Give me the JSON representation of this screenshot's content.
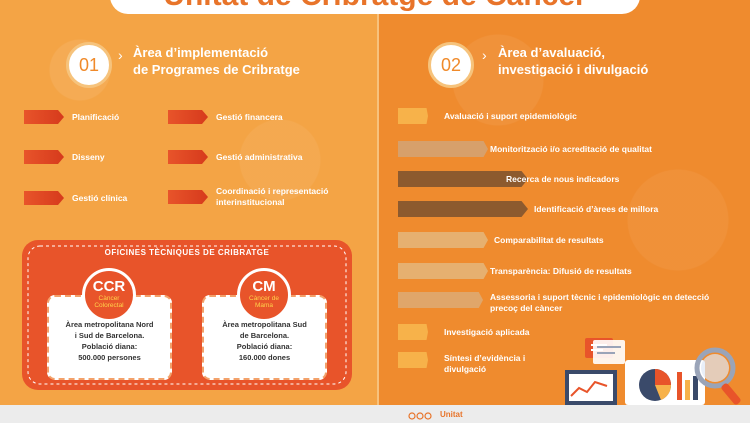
{
  "title": "Unitat de Cribratge de Càncer",
  "sections": [
    {
      "number": "01",
      "title_line1": "Àrea d’implementació",
      "title_line2": "de Programes de Cribratge"
    },
    {
      "number": "02",
      "title_line1": "Àrea d’avaluació,",
      "title_line2": "investigació i divulgació"
    }
  ],
  "left_items": [
    "Planificació",
    "Disseny",
    "Gestió clínica",
    "Gestió financera",
    "Gestió administrativa",
    "Coordinació i representació interinstitucional"
  ],
  "right_items": [
    {
      "label": "Avaluació i suport epidemiològic",
      "color": "#f7b24a"
    },
    {
      "label": "Monitorització i/o acreditació de qualitat",
      "color": "#d7a06b"
    },
    {
      "label": "Recerca de nous indicadors",
      "color": "#8d5a2e"
    },
    {
      "label": "Identificació d’àrees de millora",
      "color": "#8d5a2e"
    },
    {
      "label": "Comparabilitat de resultats",
      "color": "#e6b070"
    },
    {
      "label": "Transparència: Difusió de resultats",
      "color": "#e6b070"
    },
    {
      "label": "Assessoria i suport tècnic i epidemiològic en detecció precoç del càncer",
      "color": "#e0a66a"
    },
    {
      "label": "Investigació aplicada",
      "color": "#f7b24a"
    },
    {
      "label": "Síntesi d’evidència i divulgació",
      "color": "#f7b24a"
    }
  ],
  "oficines": {
    "title": "OFICINES TÈCNIQUES DE CRIBRATGE",
    "cards": [
      {
        "abbr": "CCR",
        "name": "Càncer Colorectal",
        "line1": "Àrea metropolitana Nord",
        "line2": "i Sud de Barcelona.",
        "line3": "Població diana:",
        "line4": "500.000 persones"
      },
      {
        "abbr": "CM",
        "name": "Càncer de Mama",
        "line1": "Àrea metropolitana Sud",
        "line2": "de Barcelona.",
        "line3": "Població diana:",
        "line4": "160.000 dones"
      }
    ]
  },
  "footer": {
    "brand": "Unitat"
  },
  "colors": {
    "left_bg": "#f4a445",
    "right_bg": "#ef8b2e",
    "accent": "#e8542a"
  }
}
